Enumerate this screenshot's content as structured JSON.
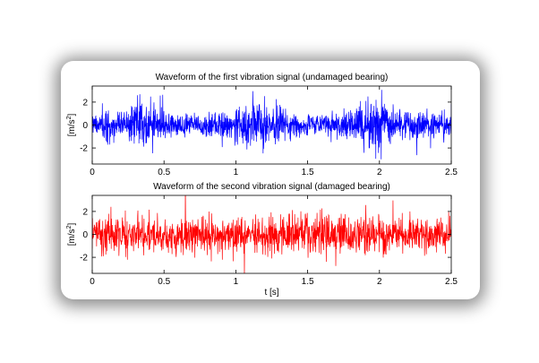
{
  "chart_data": [
    {
      "type": "line",
      "title": "Waveform of the first vibration signal (undamaged bearing)",
      "xlabel": "",
      "ylabel_base": "[m/s",
      "ylabel_exp": "2",
      "ylabel_close": "]",
      "xlim": [
        0,
        2.5
      ],
      "ylim": [
        -3.4,
        3.4
      ],
      "xticks": [
        0,
        0.5,
        1,
        1.5,
        2,
        2.5
      ],
      "xtick_labels": [
        "0",
        "0.5",
        "1",
        "1.5",
        "2",
        "2.5"
      ],
      "yticks": [
        2,
        0,
        -2
      ],
      "ytick_labels": [
        "2",
        "0",
        "-2"
      ],
      "color": "#0000ff",
      "series": [
        {
          "sample_count": 1600,
          "amplitude_envelope": {
            "t": [
              0,
              0.25,
              0.3,
              0.45,
              0.6,
              0.8,
              1.0,
              1.1,
              1.2,
              1.35,
              1.5,
              1.65,
              1.8,
              1.9,
              2.0,
              2.05,
              2.2,
              2.35,
              2.5
            ],
            "amp": [
              1.3,
              1.6,
              2.7,
              1.6,
              1.2,
              1.1,
              1.8,
              2.6,
              2.2,
              1.5,
              1.1,
              1.2,
              1.7,
              2.4,
              3.0,
              2.6,
              1.5,
              1.7,
              1.3
            ]
          }
        }
      ],
      "noise_seed": 7
    },
    {
      "type": "line",
      "title": "Waveform of the second vibration signal (damaged bearing)",
      "xlabel": "t  [s]",
      "ylabel_base": "[m/s",
      "ylabel_exp": "2",
      "ylabel_close": "]",
      "xlim": [
        0,
        2.5
      ],
      "ylim": [
        -3.4,
        3.4
      ],
      "xticks": [
        0,
        0.5,
        1,
        1.5,
        2,
        2.5
      ],
      "xtick_labels": [
        "0",
        "0.5",
        "1",
        "1.5",
        "2",
        "2.5"
      ],
      "yticks": [
        2,
        0,
        -2
      ],
      "ytick_labels": [
        "2",
        "0",
        "-2"
      ],
      "color": "#ff0000",
      "series": [
        {
          "sample_count": 1400,
          "amplitude_envelope": {
            "t": [
              0,
              0.5,
              1.0,
              1.5,
              2.0,
              2.5
            ],
            "amp": [
              1.8,
              1.9,
              1.8,
              2.0,
              1.9,
              1.8
            ]
          }
        }
      ],
      "noise_seed": 13
    }
  ]
}
